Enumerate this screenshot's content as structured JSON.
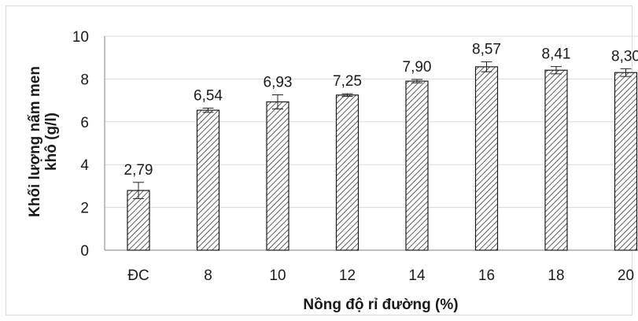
{
  "chart_data": {
    "type": "bar",
    "categories": [
      "ĐC",
      "8",
      "10",
      "12",
      "14",
      "16",
      "18",
      "20"
    ],
    "values": [
      2.79,
      6.54,
      6.93,
      7.25,
      7.9,
      8.57,
      8.41,
      8.3
    ],
    "data_labels": [
      "2,79",
      "6,54",
      "6,93",
      "7,25",
      "7,90",
      "8,57",
      "8,41",
      "8,30"
    ],
    "error": [
      0.38,
      0.1,
      0.33,
      0.06,
      0.08,
      0.23,
      0.17,
      0.18
    ],
    "xlabel": "Nồng độ rỉ đường (%)",
    "ylabel_line1": "Khối lượng nấm men",
    "ylabel_line2": "khô (g/l)",
    "ylim": [
      0,
      10
    ],
    "yticks": [
      "0",
      "2",
      "4",
      "6",
      "8",
      "10"
    ],
    "grid": true,
    "bar_fill": "hatched",
    "colors": {
      "bar_stroke": "#1a1a1a",
      "hatch": "#333333",
      "grid": "#d9d9d9",
      "axis": "#808080"
    }
  }
}
